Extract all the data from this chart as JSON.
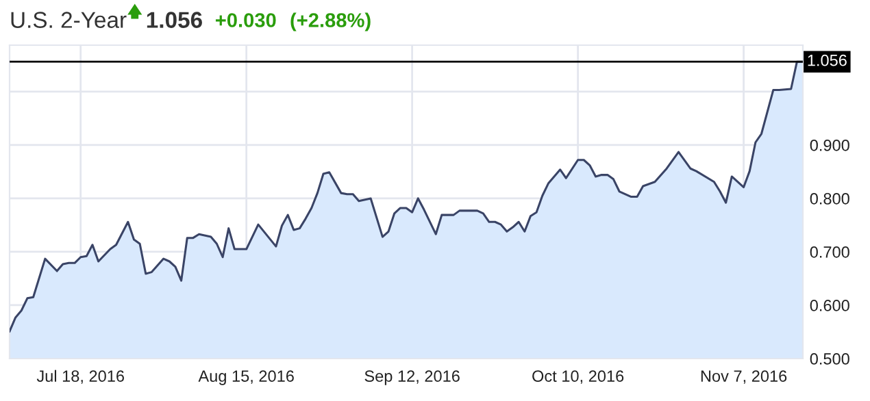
{
  "chart_data": {
    "type": "area",
    "title": "U.S. 2-Year",
    "subtitle": "1.056",
    "annotations": [
      "+0.030",
      "(+2.88%)"
    ],
    "x": [
      "2016-07-06",
      "2016-07-07",
      "2016-07-08",
      "2016-07-09",
      "2016-07-10",
      "2016-07-12",
      "2016-07-14",
      "2016-07-15",
      "2016-07-16",
      "2016-07-17",
      "2016-07-18",
      "2016-07-19",
      "2016-07-20",
      "2016-07-21",
      "2016-07-23",
      "2016-07-24",
      "2016-07-26",
      "2016-07-27",
      "2016-07-28",
      "2016-07-29",
      "2016-07-30",
      "2016-08-01",
      "2016-08-02",
      "2016-08-03",
      "2016-08-04",
      "2016-08-05",
      "2016-08-06",
      "2016-08-07",
      "2016-08-09",
      "2016-08-10",
      "2016-08-11",
      "2016-08-12",
      "2016-08-13",
      "2016-08-15",
      "2016-08-17",
      "2016-08-20",
      "2016-08-21",
      "2016-08-22",
      "2016-08-23",
      "2016-08-24",
      "2016-08-25",
      "2016-08-26",
      "2016-08-27",
      "2016-08-28",
      "2016-08-29",
      "2016-08-31",
      "2016-09-01",
      "2016-09-02",
      "2016-09-03",
      "2016-09-05",
      "2016-09-07",
      "2016-09-08",
      "2016-09-09",
      "2016-09-10",
      "2016-09-11",
      "2016-09-12",
      "2016-09-13",
      "2016-09-14",
      "2016-09-16",
      "2016-09-17",
      "2016-09-19",
      "2016-09-20",
      "2016-09-23",
      "2016-09-24",
      "2016-09-25",
      "2016-09-26",
      "2016-09-27",
      "2016-09-28",
      "2016-09-29",
      "2016-09-30",
      "2016-10-01",
      "2016-10-02",
      "2016-10-03",
      "2016-10-04",
      "2016-10-05",
      "2016-10-07",
      "2016-10-08",
      "2016-10-10",
      "2016-10-11",
      "2016-10-12",
      "2016-10-13",
      "2016-10-14",
      "2016-10-15",
      "2016-10-16",
      "2016-10-17",
      "2016-10-19",
      "2016-10-20",
      "2016-10-21",
      "2016-10-23",
      "2016-10-25",
      "2016-10-27",
      "2016-10-29",
      "2016-10-30",
      "2016-11-02",
      "2016-11-03",
      "2016-11-04",
      "2016-11-05",
      "2016-11-07",
      "2016-11-08",
      "2016-11-09",
      "2016-11-10",
      "2016-11-12",
      "2016-11-13",
      "2016-11-15",
      "2016-11-16",
      "2016-11-17"
    ],
    "series": [
      {
        "color": "#3a4466",
        "values": [
          0.551,
          0.577,
          0.59,
          0.613,
          0.615,
          0.687,
          0.664,
          0.677,
          0.679,
          0.679,
          0.69,
          0.692,
          0.713,
          0.682,
          0.705,
          0.713,
          0.756,
          0.723,
          0.715,
          0.659,
          0.662,
          0.687,
          0.682,
          0.672,
          0.646,
          0.726,
          0.726,
          0.733,
          0.728,
          0.715,
          0.69,
          0.744,
          0.705,
          0.705,
          0.751,
          0.71,
          0.749,
          0.769,
          0.741,
          0.744,
          0.762,
          0.782,
          0.81,
          0.846,
          0.849,
          0.81,
          0.808,
          0.808,
          0.795,
          0.8,
          0.728,
          0.738,
          0.772,
          0.782,
          0.782,
          0.774,
          0.8,
          0.779,
          0.733,
          0.769,
          0.769,
          0.777,
          0.777,
          0.772,
          0.756,
          0.756,
          0.751,
          0.738,
          0.746,
          0.756,
          0.738,
          0.767,
          0.774,
          0.805,
          0.828,
          0.854,
          0.838,
          0.872,
          0.872,
          0.862,
          0.841,
          0.844,
          0.844,
          0.836,
          0.813,
          0.803,
          0.803,
          0.823,
          0.831,
          0.856,
          0.887,
          0.856,
          0.851,
          0.831,
          0.813,
          0.792,
          0.841,
          0.821,
          0.851,
          0.905,
          0.921,
          1.003,
          1.003,
          1.005,
          1.056,
          1.056
        ]
      }
    ],
    "xlim": [
      "2016-07-06",
      "2016-11-17"
    ],
    "xticks": [
      {
        "value": "2016-07-18",
        "label": "Jul 18, 2016"
      },
      {
        "value": "2016-08-15",
        "label": "Aug 15, 2016"
      },
      {
        "value": "2016-09-12",
        "label": "Sep 12, 2016"
      },
      {
        "value": "2016-10-10",
        "label": "Oct 10, 2016"
      },
      {
        "value": "2016-11-07",
        "label": "Nov 7, 2016"
      }
    ],
    "ylim": [
      0.5,
      1.087
    ],
    "yticks": [
      {
        "value": 0.5,
        "label": "0.500"
      },
      {
        "value": 0.6,
        "label": "0.600"
      },
      {
        "value": 0.7,
        "label": "0.700"
      },
      {
        "value": 0.8,
        "label": "0.800"
      },
      {
        "value": 0.9,
        "label": "0.900"
      },
      {
        "value": 1.0,
        "label": null
      }
    ],
    "ref_lines": [
      {
        "axis": "y",
        "value": 1.056,
        "label": "1.056",
        "color": "#000000"
      }
    ],
    "grid": true
  }
}
